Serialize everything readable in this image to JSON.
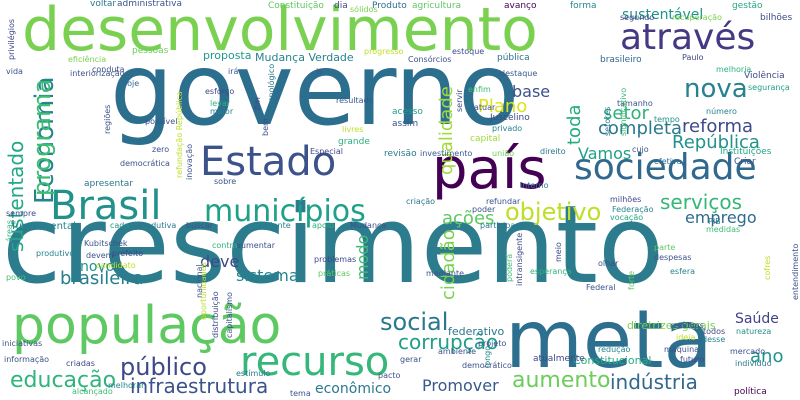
{
  "words": [
    {
      "text": "governo",
      "color": "#2c6e8e"
    },
    {
      "text": "crescimento",
      "color": "#2c7c8e"
    },
    {
      "text": "meta",
      "color": "#2d6f8e"
    },
    {
      "text": "desenvolvimento",
      "color": "#7ad151"
    },
    {
      "text": "população",
      "color": "#5ec962"
    },
    {
      "text": "país",
      "color": "#440154"
    },
    {
      "text": "Estado",
      "color": "#3b528b"
    },
    {
      "text": "sociedade",
      "color": "#31688e"
    },
    {
      "text": "recurso",
      "color": "#35b779"
    },
    {
      "text": "através",
      "color": "#443a83"
    },
    {
      "text": "Brasil",
      "color": "#21918c"
    },
    {
      "text": "municípios",
      "color": "#1fa187"
    },
    {
      "text": "Economia",
      "color": "#25848e"
    },
    {
      "text": "nova",
      "color": "#26828e"
    },
    {
      "text": "objetivo",
      "color": "#bddf26"
    },
    {
      "text": "social",
      "color": "#2a788e"
    },
    {
      "text": "programa",
      "color": "#3dbc74"
    },
    {
      "text": "público",
      "color": "#3e4989"
    },
    {
      "text": "infraestrutura",
      "color": "#3b528b"
    },
    {
      "text": "educação",
      "color": "#2fb47c"
    },
    {
      "text": "corrupção",
      "color": "#1f9e89"
    },
    {
      "text": "aumento",
      "color": "#6ccd5a"
    },
    {
      "text": "indústria",
      "color": "#31688e"
    },
    {
      "text": "reforma",
      "color": "#3e4989"
    },
    {
      "text": "República",
      "color": "#21918c"
    },
    {
      "text": "serviços",
      "color": "#35b779"
    },
    {
      "text": "sustentado",
      "color": "#22a884"
    },
    {
      "text": "brasileira",
      "color": "#277f8e"
    },
    {
      "text": "setor",
      "color": "#2db27d"
    },
    {
      "text": "completa",
      "color": "#2a788e"
    },
    {
      "text": "Vamos",
      "color": "#1fa187"
    },
    {
      "text": "qualidade",
      "color": "#a0da39"
    },
    {
      "text": "toda",
      "color": "#25ab82"
    },
    {
      "text": "base",
      "color": "#3b528b"
    },
    {
      "text": "Plano",
      "color": "#dde318"
    },
    {
      "text": "sustentável",
      "color": "#20928c"
    },
    {
      "text": "sistema",
      "color": "#25848e"
    },
    {
      "text": "ações",
      "color": "#5ec962"
    },
    {
      "text": "emprego",
      "color": "#306a8e"
    },
    {
      "text": "cidadão",
      "color": "#7ad151"
    },
    {
      "text": "deve",
      "color": "#3e4989"
    },
    {
      "text": "modo",
      "color": "#3dbc74"
    },
    {
      "text": "Promover",
      "color": "#38598c"
    },
    {
      "text": "econômico",
      "color": "#2a788e"
    },
    {
      "text": "ano",
      "color": "#20928c"
    },
    {
      "text": "Saúde",
      "color": "#414487"
    },
    {
      "text": "novo",
      "color": "#21918c"
    },
    {
      "text": "fundamental",
      "color": "#26828e"
    },
    {
      "text": "federativo",
      "color": "#2a768e"
    },
    {
      "text": "Constitucional",
      "color": "#29af7f"
    },
    {
      "text": "diretrizes gerais",
      "color": "#7ad151"
    },
    {
      "text": "atualmente",
      "color": "#3e4989"
    },
    {
      "text": "Mudança Verdade",
      "color": "#26828e"
    },
    {
      "text": "proposta",
      "color": "#1f9a8a"
    },
    {
      "text": "pessoas",
      "color": "#6ccd5a"
    },
    {
      "text": "administrativa",
      "color": "#3b528b"
    },
    {
      "text": "Constituição",
      "color": "#5ec962"
    },
    {
      "text": "voltar",
      "color": "#2a788e"
    },
    {
      "text": "dia",
      "color": "#3e4989"
    },
    {
      "text": "Produto",
      "color": "#2d708e"
    },
    {
      "text": "agricultura",
      "color": "#5ec962"
    },
    {
      "text": "avanço",
      "color": "#440154"
    },
    {
      "text": "forma",
      "color": "#238a8d"
    },
    {
      "text": "gestão",
      "color": "#22a884"
    },
    {
      "text": "bilhões",
      "color": "#3e4989"
    },
    {
      "text": "recuperação",
      "color": "#7ad151"
    },
    {
      "text": "segundo",
      "color": "#414487"
    },
    {
      "text": "pública",
      "color": "#2e6e8e"
    },
    {
      "text": "brasileiro",
      "color": "#31688e"
    },
    {
      "text": "destaque",
      "color": "#38598c"
    },
    {
      "text": "Paulo",
      "color": "#3f4788"
    },
    {
      "text": "melhoria",
      "color": "#2db27d"
    },
    {
      "text": "Violência",
      "color": "#3e4989"
    },
    {
      "text": "segurança",
      "color": "#1fa187"
    },
    {
      "text": "número",
      "color": "#25848e"
    },
    {
      "text": "tamanho",
      "color": "#3b528b"
    },
    {
      "text": "tempo",
      "color": "#20928c"
    },
    {
      "text": "Instituições",
      "color": "#22a884"
    },
    {
      "text": "Criar",
      "color": "#3b528b"
    },
    {
      "text": "efetiva",
      "color": "#306a8e"
    },
    {
      "text": "Juscelino",
      "color": "#3e4989"
    },
    {
      "text": "privado",
      "color": "#25848e"
    },
    {
      "text": "capital",
      "color": "#a0da39"
    },
    {
      "text": "direito",
      "color": "#2a788e"
    },
    {
      "text": "investimento",
      "color": "#38598c"
    },
    {
      "text": "união",
      "color": "#6ccd5a"
    },
    {
      "text": "revisão",
      "color": "#2a788e"
    },
    {
      "text": "Especial",
      "color": "#3e4989"
    },
    {
      "text": "grande",
      "color": "#2db27d"
    },
    {
      "text": "acesso",
      "color": "#1f9e89"
    },
    {
      "text": "assim",
      "color": "#3b528b"
    },
    {
      "text": "resultado",
      "color": "#38598c"
    },
    {
      "text": "esforço",
      "color": "#3e4989"
    },
    {
      "text": "levar",
      "color": "#2db27d"
    },
    {
      "text": "maior",
      "color": "#25848e"
    },
    {
      "text": "possível",
      "color": "#3b528b"
    },
    {
      "text": "hoje",
      "color": "#31688e"
    },
    {
      "text": "zero",
      "color": "#3b528b"
    },
    {
      "text": "apresentar",
      "color": "#2a788e"
    },
    {
      "text": "sempre",
      "color": "#3e4989"
    },
    {
      "text": "cada",
      "color": "#20928c"
    },
    {
      "text": "produtiva",
      "color": "#2a788e"
    },
    {
      "text": "buscar",
      "color": "#3b528b"
    },
    {
      "text": "presidente",
      "color": "#25848e"
    },
    {
      "text": "Mudança",
      "color": "#3b528b"
    },
    {
      "text": "participação",
      "color": "#2a788e"
    },
    {
      "text": "vocação",
      "color": "#22a884"
    },
    {
      "text": "Federação",
      "color": "#25848e"
    },
    {
      "text": "medidas",
      "color": "#3dbc74"
    },
    {
      "text": "PIB",
      "color": "#2a788e"
    },
    {
      "text": "parte",
      "color": "#5ec962"
    },
    {
      "text": "despesas",
      "color": "#3b528b"
    },
    {
      "text": "esfera",
      "color": "#25848e"
    },
    {
      "text": "olhar",
      "color": "#3b528b"
    },
    {
      "text": "esperança",
      "color": "#2db27d"
    },
    {
      "text": "meio",
      "color": "#3e4989"
    },
    {
      "text": "forte",
      "color": "#5ec962"
    },
    {
      "text": "devem",
      "color": "#3b528b"
    },
    {
      "text": "Kubitschek",
      "color": "#3b528b"
    },
    {
      "text": "produtivo",
      "color": "#25848e"
    },
    {
      "text": "prefeito",
      "color": "#3e4989"
    },
    {
      "text": "aumentar",
      "color": "#3b528b"
    },
    {
      "text": "contra",
      "color": "#2db27d"
    },
    {
      "text": "problemas",
      "color": "#3e4989"
    },
    {
      "text": "práticas",
      "color": "#5ec962"
    },
    {
      "text": "mediante",
      "color": "#3b528b"
    },
    {
      "text": "resíduos",
      "color": "#3b528b"
    },
    {
      "text": "todos",
      "color": "#3e4989"
    },
    {
      "text": "redução",
      "color": "#25848e"
    },
    {
      "text": "ideia",
      "color": "#bddf26"
    },
    {
      "text": "máquina",
      "color": "#3b528b"
    },
    {
      "text": "desse",
      "color": "#25848e"
    },
    {
      "text": "mercado",
      "color": "#3b528b"
    },
    {
      "text": "futuro",
      "color": "#3e4989"
    },
    {
      "text": "indivíduo",
      "color": "#2a788e"
    },
    {
      "text": "política",
      "color": "#440154"
    },
    {
      "text": "natureza",
      "color": "#20928c"
    },
    {
      "text": "informação",
      "color": "#3b528b"
    },
    {
      "text": "alcançado",
      "color": "#3dbc74"
    },
    {
      "text": "criadas",
      "color": "#3e4989"
    },
    {
      "text": "melhorar",
      "color": "#25848e"
    },
    {
      "text": "democrático",
      "color": "#3b528b"
    },
    {
      "text": "ambiente",
      "color": "#3b528b"
    },
    {
      "text": "capitalismo",
      "color": "#3b528b"
    },
    {
      "text": "distribuição",
      "color": "#3e4989"
    },
    {
      "text": "estímulo",
      "color": "#2a788e"
    },
    {
      "text": "povo",
      "color": "#3dbc74"
    },
    {
      "text": "iniciativas",
      "color": "#3b528b"
    },
    {
      "text": "candidato",
      "color": "#bddf26"
    },
    {
      "text": "longo",
      "color": "#25848e"
    },
    {
      "text": "Consórcios",
      "color": "#3b528b"
    },
    {
      "text": "estoque",
      "color": "#3e4989"
    },
    {
      "text": "progresso",
      "color": "#bddf26"
    },
    {
      "text": "sólidos",
      "color": "#7ad151"
    },
    {
      "text": "eficiência",
      "color": "#7ad151"
    },
    {
      "text": "conduta",
      "color": "#3b528b"
    },
    {
      "text": "interiorização",
      "color": "#3b528b"
    },
    {
      "text": "fim",
      "color": "#3e4989"
    },
    {
      "text": "tecnológico",
      "color": "#2a788e"
    },
    {
      "text": "setores",
      "color": "#2a788e"
    },
    {
      "text": "significativo",
      "color": "#3dbc74"
    },
    {
      "text": "servir",
      "color": "#3e4989"
    },
    {
      "text": "refundar",
      "color": "#3b528b"
    },
    {
      "text": "poder",
      "color": "#3b528b"
    },
    {
      "text": "interno",
      "color": "#2a788e"
    },
    {
      "text": "criação",
      "color": "#2a788e"
    },
    {
      "text": "milhões",
      "color": "#3e4989"
    },
    {
      "text": "sobre",
      "color": "#3b528b"
    },
    {
      "text": "inovação",
      "color": "#3b528b"
    },
    {
      "text": "apoio",
      "color": "#2db27d"
    },
    {
      "text": "refundação República",
      "color": "#bddf26"
    },
    {
      "text": "livres",
      "color": "#bddf26"
    },
    {
      "text": "regiões",
      "color": "#3b528b"
    },
    {
      "text": "privilégios",
      "color": "#3e4989"
    },
    {
      "text": "vida",
      "color": "#3b528b"
    },
    {
      "text": "áreas",
      "color": "#2db27d"
    },
    {
      "text": "cofres",
      "color": "#bddf26"
    },
    {
      "text": "entendimento",
      "color": "#3b528b"
    },
    {
      "text": "poderá",
      "color": "#3dbc74"
    },
    {
      "text": "intransigente",
      "color": "#3e4989"
    },
    {
      "text": "oportunidades",
      "color": "#bddf26"
    },
    {
      "text": "is",
      "color": "#3b528b"
    },
    {
      "text": "irá",
      "color": "#3b528b"
    },
    {
      "text": "atuar",
      "color": "#3b528b"
    },
    {
      "text": "enfim",
      "color": "#3dbc74"
    },
    {
      "text": "cujo",
      "color": "#3b528b"
    },
    {
      "text": "tema",
      "color": "#3b528b"
    },
    {
      "text": "pacto",
      "color": "#3b528b"
    },
    {
      "text": "projeto",
      "color": "#3b528b"
    },
    {
      "text": "Federal",
      "color": "#3b528b"
    },
    {
      "text": "gerar",
      "color": "#3b528b"
    },
    {
      "text": "democrática",
      "color": "#3b528b"
    },
    {
      "text": "nacional",
      "color": "#3b528b"
    },
    {
      "text": "bem",
      "color": "#3b528b"
    }
  ]
}
